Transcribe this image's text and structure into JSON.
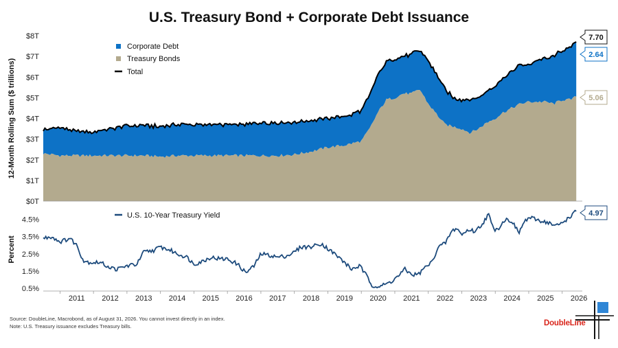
{
  "chart_data": [
    {
      "type": "area",
      "title": "U.S. Treasury Bond + Corporate Debt Issuance",
      "ylabel": "12-Month Rolling Sum ($ trillions)",
      "ylim": [
        0,
        8
      ],
      "yticks": [
        "$0T",
        "$1T",
        "$2T",
        "$3T",
        "$4T",
        "$5T",
        "$6T",
        "$7T",
        "$8T"
      ],
      "stacked": true,
      "x": [
        2010.5,
        2011.0,
        2011.5,
        2012.0,
        2012.5,
        2013.0,
        2013.5,
        2014.0,
        2014.5,
        2015.0,
        2015.5,
        2016.0,
        2016.5,
        2017.0,
        2017.5,
        2018.0,
        2018.5,
        2019.0,
        2019.5,
        2019.75,
        2020.0,
        2020.25,
        2020.5,
        2020.75,
        2021.0,
        2021.25,
        2021.5,
        2021.75,
        2022.0,
        2022.25,
        2022.5,
        2022.75,
        2023.0,
        2023.25,
        2023.5,
        2023.75,
        2024.0,
        2024.25,
        2024.5,
        2024.75,
        2025.0,
        2025.25,
        2025.5,
        2025.75,
        2026.0,
        2026.25,
        2026.42
      ],
      "series": [
        {
          "name": "Treasury Bonds",
          "color": "#b3aa8e",
          "values": [
            2.3,
            2.2,
            2.2,
            2.2,
            2.2,
            2.2,
            2.2,
            2.15,
            2.2,
            2.2,
            2.2,
            2.2,
            2.2,
            2.2,
            2.2,
            2.25,
            2.4,
            2.6,
            2.7,
            2.8,
            2.9,
            3.5,
            4.3,
            4.9,
            5.0,
            5.2,
            5.2,
            5.4,
            4.7,
            4.2,
            3.7,
            3.6,
            3.5,
            3.3,
            3.5,
            3.8,
            4.0,
            4.3,
            4.5,
            4.7,
            4.8,
            4.8,
            4.8,
            4.7,
            4.9,
            4.9,
            5.06
          ]
        },
        {
          "name": "Corporate Debt",
          "color": "#0d72c6",
          "values": [
            1.15,
            1.35,
            1.15,
            1.15,
            1.3,
            1.45,
            1.45,
            1.45,
            1.5,
            1.5,
            1.5,
            1.5,
            1.5,
            1.6,
            1.6,
            1.55,
            1.5,
            1.4,
            1.4,
            1.4,
            1.5,
            1.6,
            1.8,
            1.85,
            1.85,
            1.8,
            1.9,
            1.9,
            2.1,
            1.9,
            1.7,
            1.4,
            1.4,
            1.6,
            1.5,
            1.5,
            1.6,
            1.7,
            1.8,
            1.9,
            1.8,
            2.0,
            2.1,
            2.3,
            2.4,
            2.5,
            2.64
          ]
        }
      ],
      "total": {
        "name": "Total",
        "color": "#000000"
      },
      "end_labels": {
        "total": "7.70",
        "corporate": "2.64",
        "treasury": "5.06"
      },
      "legend_position": "top-left"
    },
    {
      "type": "line",
      "ylabel": "Percent",
      "ylim": [
        0.5,
        5.0
      ],
      "yticks": [
        "0.5%",
        "1.5%",
        "2.5%",
        "3.5%",
        "4.5%"
      ],
      "series": [
        {
          "name": "U.S. 10-Year Treasury Yield",
          "color": "#1c4a7c",
          "x": [
            2010.5,
            2010.75,
            2011.0,
            2011.3,
            2011.5,
            2011.7,
            2011.9,
            2012.2,
            2012.5,
            2012.7,
            2013.0,
            2013.3,
            2013.5,
            2013.8,
            2014.0,
            2014.3,
            2014.5,
            2014.8,
            2015.0,
            2015.3,
            2015.5,
            2015.8,
            2016.0,
            2016.3,
            2016.55,
            2016.8,
            2017.0,
            2017.3,
            2017.5,
            2017.8,
            2018.0,
            2018.2,
            2018.5,
            2018.8,
            2019.0,
            2019.2,
            2019.5,
            2019.7,
            2019.95,
            2020.2,
            2020.3,
            2020.5,
            2020.7,
            2020.9,
            2021.1,
            2021.3,
            2021.5,
            2021.7,
            2021.9,
            2022.1,
            2022.3,
            2022.5,
            2022.7,
            2022.85,
            2023.0,
            2023.2,
            2023.4,
            2023.6,
            2023.8,
            2023.95,
            2024.1,
            2024.3,
            2024.5,
            2024.7,
            2024.85,
            2025.0,
            2025.2,
            2025.4,
            2025.6,
            2025.8,
            2026.0,
            2026.2,
            2026.42
          ],
          "values": [
            3.4,
            3.5,
            3.2,
            3.4,
            3.0,
            2.1,
            2.0,
            2.0,
            1.7,
            1.6,
            1.8,
            1.9,
            2.6,
            2.7,
            2.9,
            2.7,
            2.5,
            2.3,
            1.9,
            2.1,
            2.3,
            2.2,
            2.2,
            1.9,
            1.4,
            1.8,
            2.5,
            2.4,
            2.3,
            2.4,
            2.6,
            2.9,
            2.9,
            3.1,
            2.8,
            2.5,
            2.0,
            1.6,
            1.8,
            1.1,
            0.7,
            0.6,
            0.7,
            0.9,
            1.2,
            1.6,
            1.3,
            1.3,
            1.7,
            2.0,
            2.9,
            3.1,
            3.8,
            4.0,
            3.6,
            3.9,
            3.8,
            4.2,
            4.8,
            3.9,
            4.0,
            4.5,
            4.4,
            3.7,
            4.3,
            4.6,
            4.5,
            4.4,
            4.3,
            4.1,
            4.3,
            4.6,
            4.97
          ]
        }
      ],
      "end_label": "4.97",
      "legend_position": "top-left"
    }
  ],
  "x_axis": {
    "ticks": [
      "2011",
      "2012",
      "2013",
      "2014",
      "2015",
      "2016",
      "2017",
      "2018",
      "2019",
      "2020",
      "2021",
      "2022",
      "2023",
      "2024",
      "2025",
      "2026"
    ],
    "range": [
      2010.5,
      2026.6
    ]
  },
  "footnotes": {
    "source": "Source: DoubleLine, Macrobond, as of August 31, 2026. You cannot invest directly in an index.",
    "note": "Note: U.S. Treasury issuance excludes Treasury bills."
  },
  "brand": {
    "name": "DoubleLine",
    "color": "#d9261c"
  },
  "colors": {
    "corporate": "#0d72c6",
    "treasury": "#b3aa8e",
    "total": "#000000",
    "yield": "#1c4a7c"
  }
}
